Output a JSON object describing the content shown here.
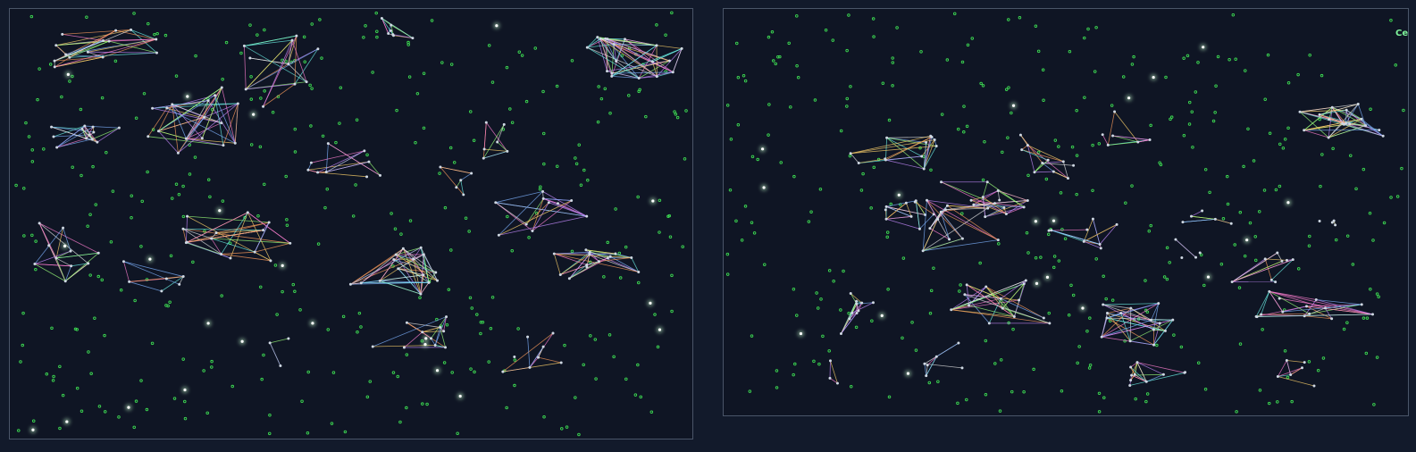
{
  "window": {
    "title": ""
  },
  "panels": {
    "left": {
      "label": ""
    },
    "right": {
      "label": "Ce"
    }
  },
  "colors": {
    "background": "#121a2b",
    "panel_fill": "#0f1524",
    "panel_border": "#4a5568",
    "node_green": "#3ddc52",
    "node_glow": "#ffffff",
    "edge_palette": [
      "#7fb3ff",
      "#ff7fd1",
      "#9bff7a",
      "#ffd36b",
      "#6bf0e6",
      "#c78bff",
      "#ff9d5c",
      "#e8e8e8"
    ]
  },
  "icons": {
    "node": "green-dot-icon",
    "bright_node": "glow-dot-icon"
  }
}
